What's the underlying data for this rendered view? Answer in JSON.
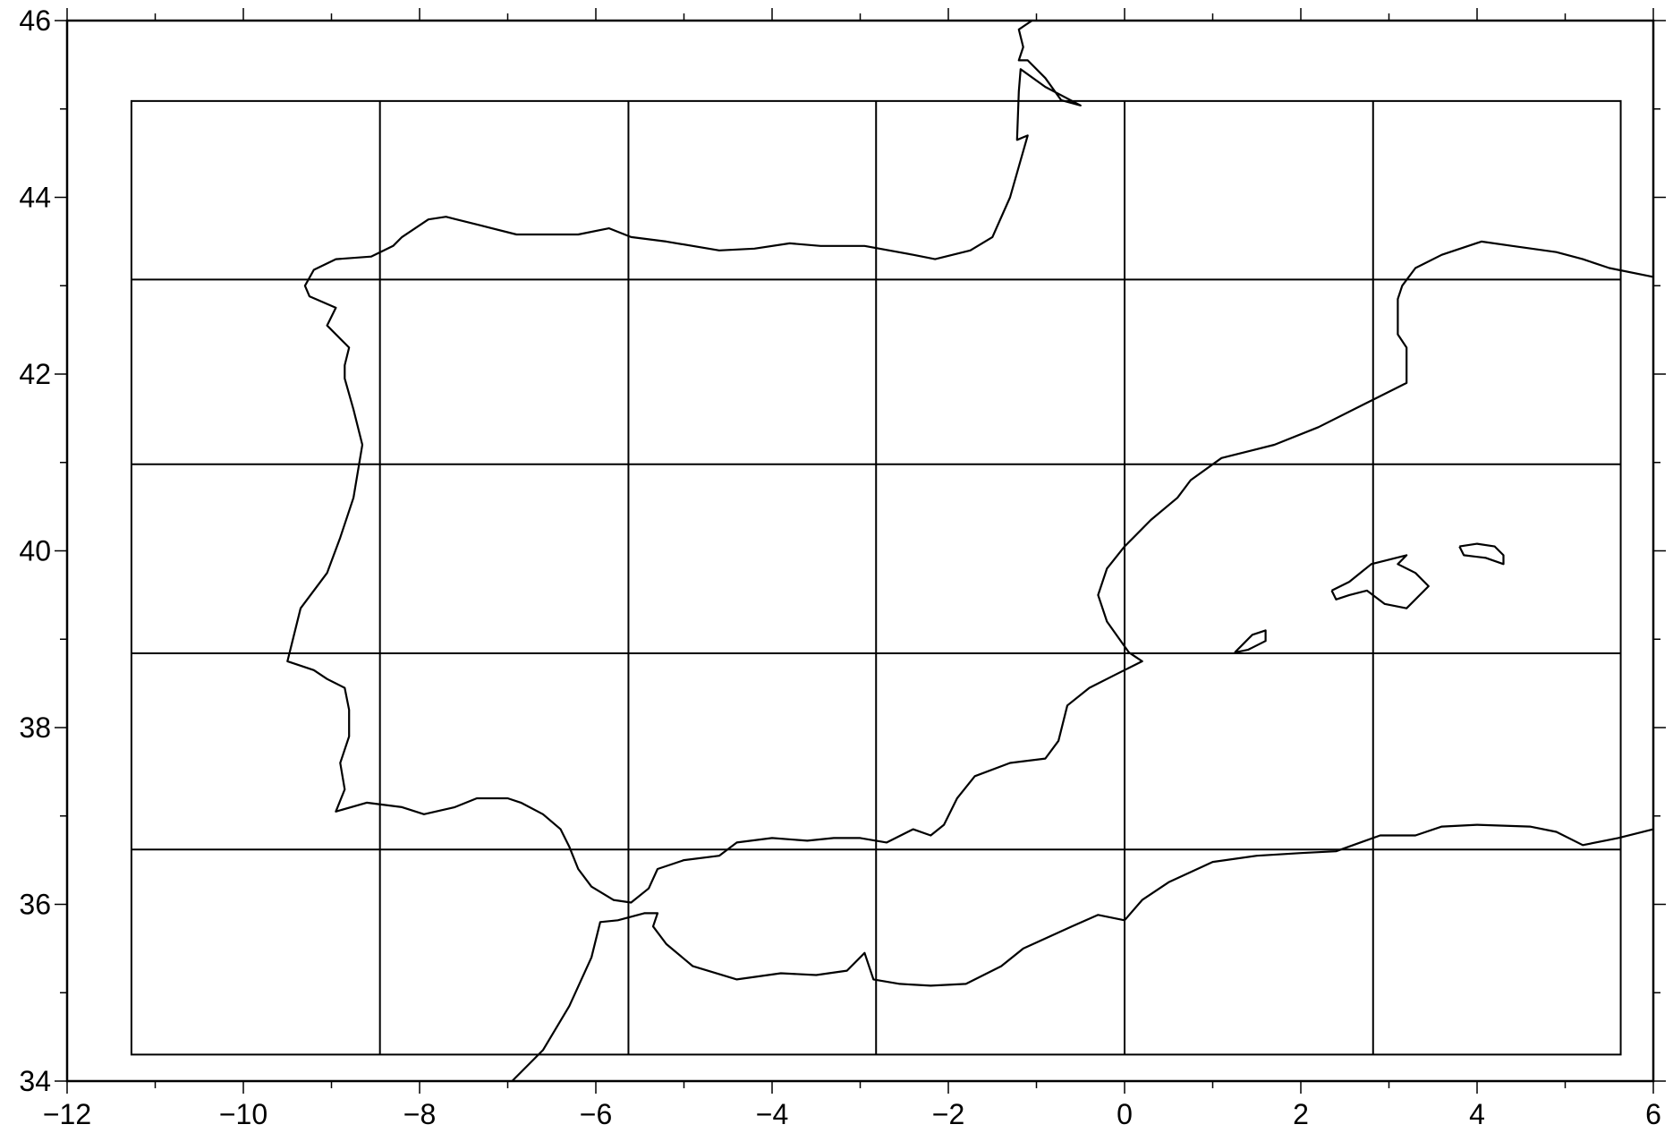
{
  "map": {
    "projection": "plate-carree",
    "lon_range": [
      -12,
      6
    ],
    "lat_range": [
      34,
      46
    ],
    "frame_color": "#000000",
    "background": "#ffffff",
    "coastline_color": "#000000",
    "x_ticks": [
      {
        "value": -12,
        "label": "−12"
      },
      {
        "value": -10,
        "label": "−10"
      },
      {
        "value": -8,
        "label": "−8"
      },
      {
        "value": -6,
        "label": "−6"
      },
      {
        "value": -4,
        "label": "−4"
      },
      {
        "value": -2,
        "label": "−2"
      },
      {
        "value": 0,
        "label": "0"
      },
      {
        "value": 2,
        "label": "2"
      },
      {
        "value": 4,
        "label": "4"
      },
      {
        "value": 6,
        "label": "6"
      }
    ],
    "y_ticks": [
      {
        "value": 34,
        "label": "34"
      },
      {
        "value": 36,
        "label": "36"
      },
      {
        "value": 38,
        "label": "38"
      },
      {
        "value": 40,
        "label": "40"
      },
      {
        "value": 42,
        "label": "42"
      },
      {
        "value": 44,
        "label": "44"
      },
      {
        "value": 46,
        "label": "46"
      }
    ],
    "minor_tick_step": 1,
    "grid_cells": {
      "lon_edges": [
        -11.27,
        -8.45,
        -5.63,
        -2.82,
        0.0,
        2.82,
        5.63
      ],
      "lat_edges": [
        34.3,
        36.62,
        38.84,
        40.98,
        43.07,
        45.09
      ]
    },
    "coastlines": [
      {
        "name": "iberia-and-france",
        "points": [
          [
            -1.05,
            46.0
          ],
          [
            -1.2,
            45.9
          ],
          [
            -1.15,
            45.7
          ],
          [
            -1.2,
            45.55
          ],
          [
            -1.1,
            45.55
          ],
          [
            -0.9,
            45.35
          ],
          [
            -0.72,
            45.1
          ],
          [
            -0.5,
            45.04
          ],
          [
            -0.9,
            45.25
          ],
          [
            -1.18,
            45.45
          ],
          [
            -1.2,
            45.2
          ],
          [
            -1.22,
            44.65
          ],
          [
            -1.1,
            44.7
          ],
          [
            -1.3,
            44.0
          ],
          [
            -1.5,
            43.55
          ],
          [
            -1.75,
            43.4
          ],
          [
            -2.15,
            43.3
          ],
          [
            -2.4,
            43.35
          ],
          [
            -2.95,
            43.45
          ],
          [
            -3.45,
            43.45
          ],
          [
            -3.8,
            43.48
          ],
          [
            -4.2,
            43.42
          ],
          [
            -4.6,
            43.4
          ],
          [
            -5.2,
            43.5
          ],
          [
            -5.6,
            43.55
          ],
          [
            -5.85,
            43.65
          ],
          [
            -6.2,
            43.58
          ],
          [
            -6.9,
            43.58
          ],
          [
            -7.3,
            43.68
          ],
          [
            -7.7,
            43.78
          ],
          [
            -7.9,
            43.75
          ],
          [
            -8.2,
            43.55
          ],
          [
            -8.3,
            43.45
          ],
          [
            -8.55,
            43.33
          ],
          [
            -8.95,
            43.3
          ],
          [
            -9.2,
            43.18
          ],
          [
            -9.3,
            43.0
          ],
          [
            -9.25,
            42.88
          ],
          [
            -8.95,
            42.75
          ],
          [
            -9.05,
            42.55
          ],
          [
            -8.8,
            42.3
          ],
          [
            -8.85,
            42.1
          ],
          [
            -8.85,
            41.95
          ],
          [
            -8.75,
            41.6
          ],
          [
            -8.65,
            41.2
          ],
          [
            -8.75,
            40.6
          ],
          [
            -8.9,
            40.15
          ],
          [
            -9.05,
            39.75
          ],
          [
            -9.35,
            39.35
          ],
          [
            -9.45,
            38.95
          ],
          [
            -9.5,
            38.75
          ],
          [
            -9.2,
            38.65
          ],
          [
            -9.05,
            38.55
          ],
          [
            -8.85,
            38.45
          ],
          [
            -8.8,
            38.2
          ],
          [
            -8.8,
            37.9
          ],
          [
            -8.9,
            37.6
          ],
          [
            -8.85,
            37.3
          ],
          [
            -8.95,
            37.05
          ],
          [
            -8.6,
            37.15
          ],
          [
            -8.2,
            37.1
          ],
          [
            -7.95,
            37.02
          ],
          [
            -7.6,
            37.1
          ],
          [
            -7.35,
            37.2
          ],
          [
            -7.0,
            37.2
          ],
          [
            -6.85,
            37.15
          ],
          [
            -6.6,
            37.02
          ],
          [
            -6.4,
            36.85
          ],
          [
            -6.3,
            36.65
          ],
          [
            -6.2,
            36.4
          ],
          [
            -6.05,
            36.2
          ],
          [
            -5.8,
            36.05
          ],
          [
            -5.6,
            36.02
          ],
          [
            -5.4,
            36.18
          ],
          [
            -5.3,
            36.4
          ],
          [
            -5.0,
            36.5
          ],
          [
            -4.6,
            36.55
          ],
          [
            -4.4,
            36.7
          ],
          [
            -4.0,
            36.75
          ],
          [
            -3.6,
            36.72
          ],
          [
            -3.3,
            36.75
          ],
          [
            -3.0,
            36.75
          ],
          [
            -2.7,
            36.7
          ],
          [
            -2.4,
            36.85
          ],
          [
            -2.2,
            36.78
          ],
          [
            -2.05,
            36.9
          ],
          [
            -1.9,
            37.2
          ],
          [
            -1.7,
            37.45
          ],
          [
            -1.3,
            37.6
          ],
          [
            -0.9,
            37.65
          ],
          [
            -0.75,
            37.85
          ],
          [
            -0.65,
            38.25
          ],
          [
            -0.4,
            38.45
          ],
          [
            -0.1,
            38.6
          ],
          [
            0.2,
            38.75
          ],
          [
            0.05,
            38.85
          ],
          [
            -0.2,
            39.2
          ],
          [
            -0.3,
            39.5
          ],
          [
            -0.2,
            39.8
          ],
          [
            0.0,
            40.05
          ],
          [
            0.3,
            40.35
          ],
          [
            0.6,
            40.6
          ],
          [
            0.75,
            40.8
          ],
          [
            1.1,
            41.05
          ],
          [
            1.7,
            41.2
          ],
          [
            2.2,
            41.4
          ],
          [
            2.8,
            41.7
          ],
          [
            3.2,
            41.9
          ],
          [
            3.2,
            42.3
          ],
          [
            3.1,
            42.45
          ],
          [
            3.1,
            42.85
          ],
          [
            3.15,
            43.0
          ],
          [
            3.3,
            43.2
          ],
          [
            3.6,
            43.35
          ],
          [
            4.05,
            43.5
          ],
          [
            4.4,
            43.45
          ],
          [
            4.9,
            43.38
          ],
          [
            5.2,
            43.3
          ],
          [
            5.5,
            43.2
          ],
          [
            6.0,
            43.1
          ]
        ]
      },
      {
        "name": "north-africa",
        "points": [
          [
            -6.95,
            34.0
          ],
          [
            -6.6,
            34.35
          ],
          [
            -6.3,
            34.85
          ],
          [
            -6.05,
            35.4
          ],
          [
            -5.95,
            35.8
          ],
          [
            -5.75,
            35.82
          ],
          [
            -5.45,
            35.9
          ],
          [
            -5.3,
            35.9
          ],
          [
            -5.35,
            35.75
          ],
          [
            -5.2,
            35.55
          ],
          [
            -4.9,
            35.3
          ],
          [
            -4.4,
            35.15
          ],
          [
            -3.9,
            35.22
          ],
          [
            -3.5,
            35.2
          ],
          [
            -3.15,
            35.25
          ],
          [
            -2.95,
            35.45
          ],
          [
            -2.85,
            35.15
          ],
          [
            -2.55,
            35.1
          ],
          [
            -2.2,
            35.08
          ],
          [
            -1.8,
            35.1
          ],
          [
            -1.4,
            35.3
          ],
          [
            -1.15,
            35.5
          ],
          [
            -0.6,
            35.75
          ],
          [
            -0.3,
            35.88
          ],
          [
            0.0,
            35.82
          ],
          [
            0.2,
            36.05
          ],
          [
            0.5,
            36.25
          ],
          [
            1.0,
            36.48
          ],
          [
            1.5,
            36.55
          ],
          [
            2.0,
            36.58
          ],
          [
            2.4,
            36.6
          ],
          [
            2.9,
            36.78
          ],
          [
            3.3,
            36.78
          ],
          [
            3.6,
            36.88
          ],
          [
            4.0,
            36.9
          ],
          [
            4.6,
            36.88
          ],
          [
            4.9,
            36.82
          ],
          [
            5.2,
            36.67
          ],
          [
            5.6,
            36.75
          ],
          [
            6.0,
            36.85
          ]
        ]
      },
      {
        "name": "mallorca",
        "points": [
          [
            2.35,
            39.55
          ],
          [
            2.55,
            39.65
          ],
          [
            2.8,
            39.85
          ],
          [
            3.2,
            39.95
          ],
          [
            3.1,
            39.85
          ],
          [
            3.3,
            39.75
          ],
          [
            3.45,
            39.6
          ],
          [
            3.2,
            39.35
          ],
          [
            2.95,
            39.4
          ],
          [
            2.75,
            39.55
          ],
          [
            2.55,
            39.5
          ],
          [
            2.4,
            39.45
          ],
          [
            2.35,
            39.55
          ]
        ]
      },
      {
        "name": "menorca",
        "points": [
          [
            3.8,
            40.05
          ],
          [
            4.0,
            40.08
          ],
          [
            4.2,
            40.05
          ],
          [
            4.3,
            39.95
          ],
          [
            4.3,
            39.85
          ],
          [
            4.1,
            39.92
          ],
          [
            3.85,
            39.95
          ],
          [
            3.8,
            40.05
          ]
        ]
      },
      {
        "name": "ibiza",
        "points": [
          [
            1.25,
            38.85
          ],
          [
            1.35,
            38.95
          ],
          [
            1.45,
            39.05
          ],
          [
            1.6,
            39.1
          ],
          [
            1.6,
            38.98
          ],
          [
            1.4,
            38.88
          ],
          [
            1.25,
            38.85
          ]
        ]
      }
    ]
  }
}
